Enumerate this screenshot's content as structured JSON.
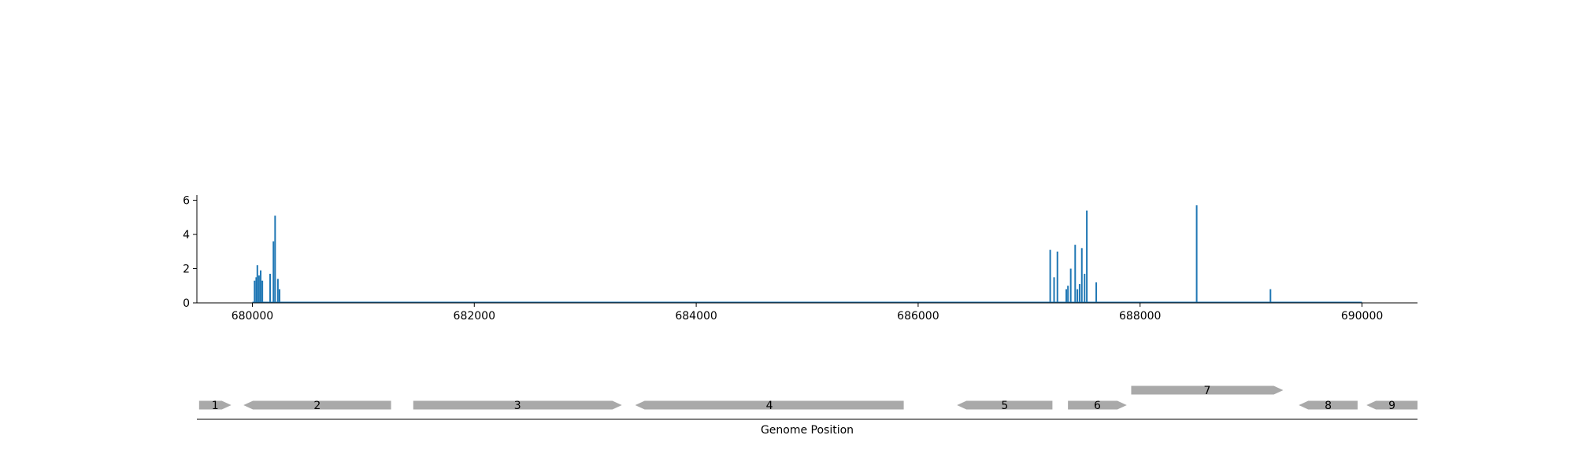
{
  "chart_data": {
    "type": "bar",
    "title": "",
    "xlabel": "Genome Position",
    "ylabel": "",
    "xlim": [
      679500,
      690500
    ],
    "ylim": [
      0,
      6.3
    ],
    "grid": false,
    "bar_color": "#1f77b4",
    "x_ticks": [
      {
        "value": 680000,
        "label": "680000"
      },
      {
        "value": 682000,
        "label": "682000"
      },
      {
        "value": 684000,
        "label": "684000"
      },
      {
        "value": 686000,
        "label": "686000"
      },
      {
        "value": 688000,
        "label": "688000"
      },
      {
        "value": 690000,
        "label": "690000"
      }
    ],
    "y_ticks": [
      {
        "value": 0,
        "label": "0"
      },
      {
        "value": 2,
        "label": "2"
      },
      {
        "value": 4,
        "label": "4"
      },
      {
        "value": 6,
        "label": "6"
      }
    ],
    "baseline_range": [
      680000,
      690000
    ],
    "points": [
      {
        "x": 680020,
        "y": 1.3
      },
      {
        "x": 680035,
        "y": 1.5
      },
      {
        "x": 680045,
        "y": 2.2
      },
      {
        "x": 680060,
        "y": 1.6
      },
      {
        "x": 680075,
        "y": 1.9
      },
      {
        "x": 680090,
        "y": 1.3
      },
      {
        "x": 680160,
        "y": 1.7
      },
      {
        "x": 680190,
        "y": 3.6
      },
      {
        "x": 680205,
        "y": 5.1
      },
      {
        "x": 680230,
        "y": 1.4
      },
      {
        "x": 680245,
        "y": 0.8
      },
      {
        "x": 687190,
        "y": 3.1
      },
      {
        "x": 687225,
        "y": 1.5
      },
      {
        "x": 687255,
        "y": 3.0
      },
      {
        "x": 687335,
        "y": 0.8
      },
      {
        "x": 687350,
        "y": 1.0
      },
      {
        "x": 687375,
        "y": 2.0
      },
      {
        "x": 687415,
        "y": 3.4
      },
      {
        "x": 687435,
        "y": 0.8
      },
      {
        "x": 687455,
        "y": 1.1
      },
      {
        "x": 687475,
        "y": 3.2
      },
      {
        "x": 687500,
        "y": 1.7
      },
      {
        "x": 687520,
        "y": 5.4
      },
      {
        "x": 687605,
        "y": 1.2
      },
      {
        "x": 688510,
        "y": 5.7
      },
      {
        "x": 689175,
        "y": 0.8
      }
    ],
    "gene_color": "#a9a9a9",
    "genes": [
      {
        "label": "1",
        "start": 679520,
        "end": 679810,
        "strand": "+",
        "track": 0
      },
      {
        "label": "2",
        "start": 679920,
        "end": 681250,
        "strand": "-",
        "track": 0
      },
      {
        "label": "3",
        "start": 681450,
        "end": 683330,
        "strand": "+",
        "track": 0
      },
      {
        "label": "4",
        "start": 683450,
        "end": 685870,
        "strand": "-",
        "track": 0
      },
      {
        "label": "5",
        "start": 686350,
        "end": 687210,
        "strand": "-",
        "track": 0
      },
      {
        "label": "6",
        "start": 687350,
        "end": 687880,
        "strand": "+",
        "track": 0
      },
      {
        "label": "7",
        "start": 687920,
        "end": 689290,
        "strand": "+",
        "track": 1
      },
      {
        "label": "8",
        "start": 689430,
        "end": 689960,
        "strand": "-",
        "track": 0
      },
      {
        "label": "9",
        "start": 690040,
        "end": 690500,
        "strand": "-",
        "track": 0
      }
    ]
  }
}
